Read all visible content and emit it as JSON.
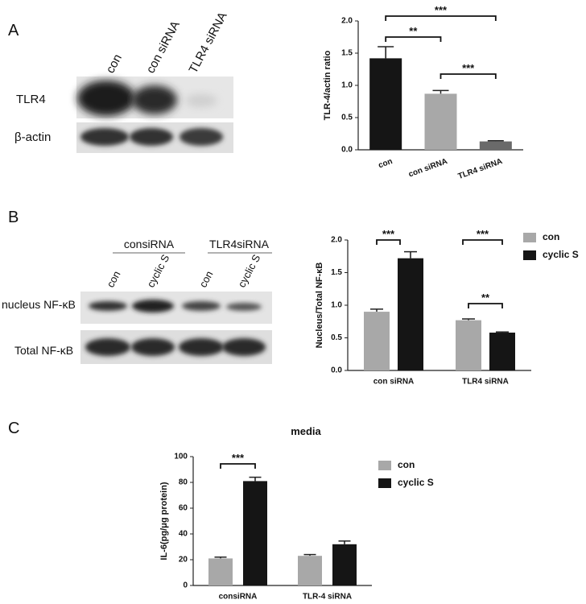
{
  "panel_labels": [
    "A",
    "B",
    "C"
  ],
  "blot_a": {
    "lanes": [
      "con",
      "con siRNA",
      "TLR4 siRNA"
    ],
    "rows": [
      "TLR4",
      "β-actin"
    ]
  },
  "blot_b": {
    "groups": [
      "consiRNA",
      "TLR4siRNA"
    ],
    "lanes": [
      "con",
      "cyclic S",
      "con",
      "cyclic S"
    ],
    "rows": [
      "nucleus NF-κB",
      "Total NF-κB"
    ]
  },
  "chart_data": [
    {
      "type": "bar",
      "y_label": "TLR-4/actin ratio",
      "categories": [
        "con",
        "con siRNA",
        "TLR4 siRNA"
      ],
      "values": [
        1.42,
        0.87,
        0.13
      ],
      "errors": [
        0.18,
        0.05,
        0.01
      ],
      "colors": [
        "#151515",
        "#a8a8a8",
        "#6a6a6a"
      ],
      "ylim": [
        0,
        2.0
      ],
      "yticks": [
        {
          "value": 0,
          "label": "0.0"
        },
        {
          "value": 0.5,
          "label": "0.5"
        },
        {
          "value": 1.0,
          "label": "1.0"
        },
        {
          "value": 1.5,
          "label": "1.5"
        },
        {
          "value": 2.0,
          "label": "2.0"
        }
      ],
      "annotations": [
        "***",
        "**",
        "***"
      ]
    },
    {
      "type": "bar",
      "y_label": "Nucleus/Total NF-κB",
      "categories": [
        "con siRNA",
        "TLR4 siRNA"
      ],
      "series": [
        {
          "name": "con",
          "color": "#a8a8a8",
          "values": [
            0.9,
            0.77
          ],
          "errors": [
            0.04,
            0.02
          ]
        },
        {
          "name": "cyclic S",
          "color": "#151515",
          "values": [
            1.72,
            0.58
          ],
          "errors": [
            0.1,
            0.01
          ]
        }
      ],
      "ylim": [
        0,
        2.0
      ],
      "yticks": [
        {
          "value": 0,
          "label": "0.0"
        },
        {
          "value": 0.5,
          "label": "0.5"
        },
        {
          "value": 1.0,
          "label": "1.0"
        },
        {
          "value": 1.5,
          "label": "1.5"
        },
        {
          "value": 2.0,
          "label": "2.0"
        }
      ],
      "legend": "right",
      "annotations": [
        "***",
        "***",
        "**"
      ]
    },
    {
      "type": "bar",
      "title": "media",
      "y_label": "IL-6(pg/μg protein)",
      "categories": [
        "consiRNA",
        "TLR-4 siRNA"
      ],
      "series": [
        {
          "name": "con",
          "color": "#a8a8a8",
          "values": [
            21,
            23
          ],
          "errors": [
            1,
            1
          ]
        },
        {
          "name": "cyclic S",
          "color": "#151515",
          "values": [
            81,
            32
          ],
          "errors": [
            3,
            2.5
          ]
        }
      ],
      "ylim": [
        0,
        100
      ],
      "yticks": [
        0,
        20,
        40,
        60,
        80,
        100
      ],
      "legend": "right",
      "annotations": [
        "***"
      ]
    }
  ]
}
